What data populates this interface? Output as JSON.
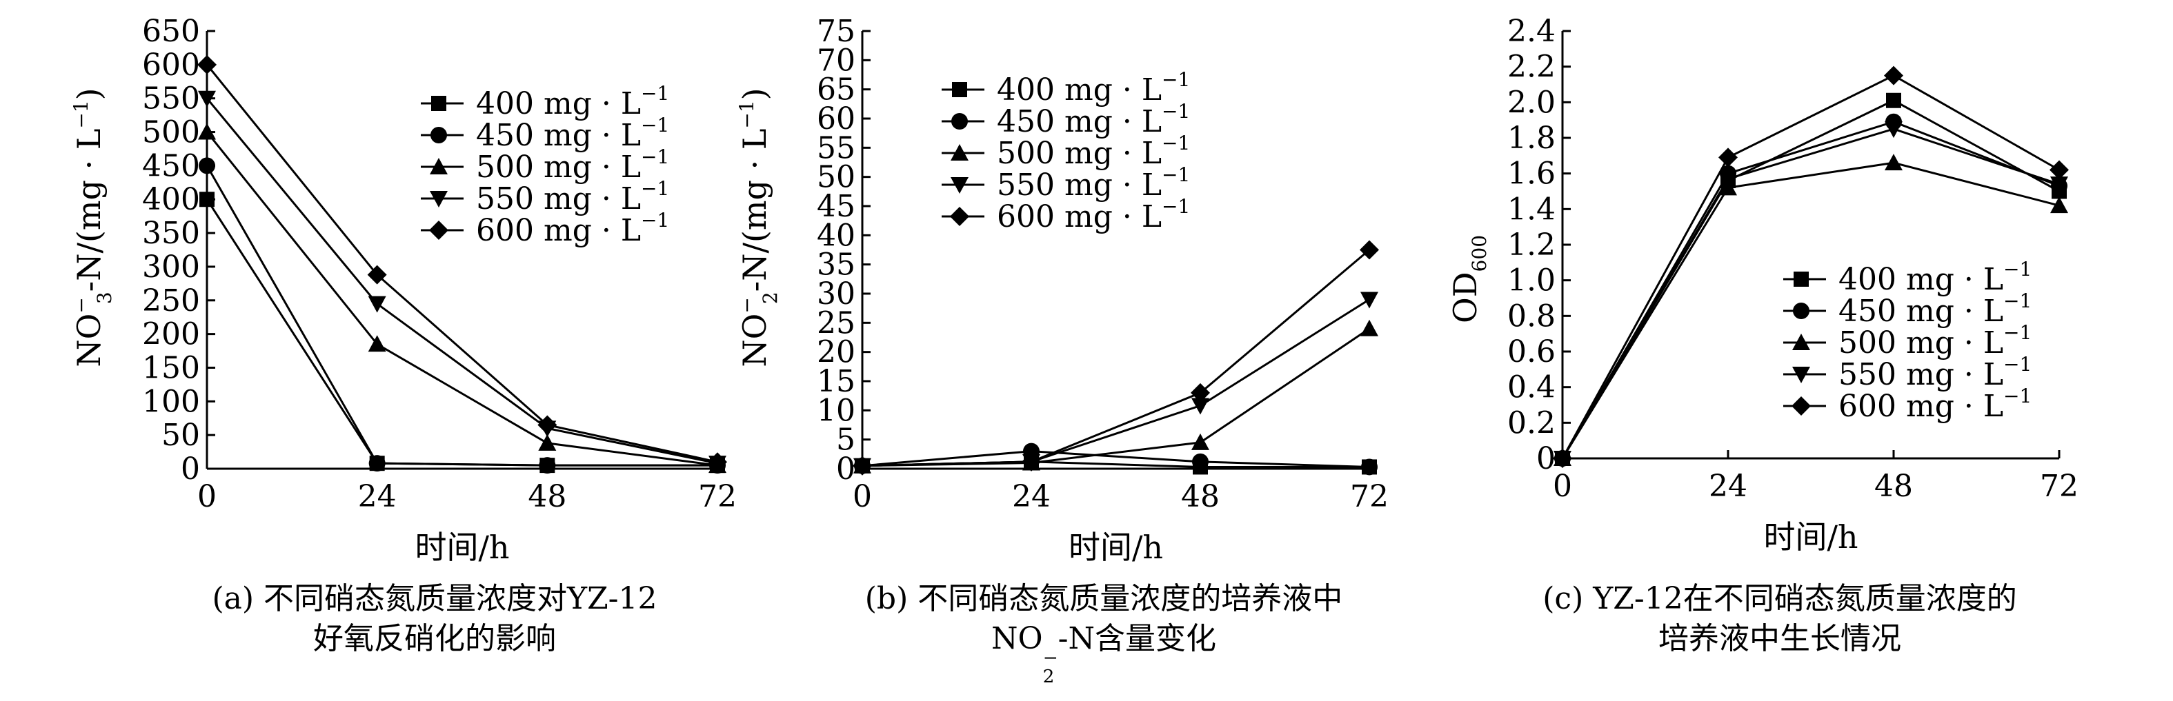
{
  "chart_data": [
    {
      "type": "line",
      "panel_label": "(a)",
      "caption": [
        "不同硝态氮质量浓度对YZ-12",
        "好氧反硝化的影响"
      ],
      "xlabel": "时间/h",
      "ylabel_parts": {
        "base": "NO",
        "sup": "−",
        "sub": "3",
        "rest": "-N/(mg · L",
        "rest_sup": "−1",
        "close": ")"
      },
      "x": [
        0,
        24,
        48,
        72
      ],
      "xlim": [
        0,
        72
      ],
      "ylim": [
        0,
        650
      ],
      "yticks": [
        0,
        50,
        100,
        150,
        200,
        250,
        300,
        350,
        400,
        450,
        500,
        550,
        600,
        650
      ],
      "legend": "top-right",
      "series": [
        {
          "name": "400 mg · L",
          "name_sup": "−1",
          "marker": "square",
          "values": [
            400,
            8,
            5,
            5
          ]
        },
        {
          "name": "450 mg · L",
          "name_sup": "−1",
          "marker": "circle",
          "values": [
            450,
            8,
            5,
            5
          ]
        },
        {
          "name": "500 mg · L",
          "name_sup": "−1",
          "marker": "triangle",
          "values": [
            500,
            185,
            38,
            5
          ]
        },
        {
          "name": "550 mg · L",
          "name_sup": "−1",
          "marker": "tri-down",
          "values": [
            550,
            245,
            60,
            8
          ]
        },
        {
          "name": "600 mg · L",
          "name_sup": "−1",
          "marker": "diamond",
          "values": [
            600,
            288,
            65,
            10
          ]
        }
      ]
    },
    {
      "type": "line",
      "panel_label": "(b)",
      "caption": [
        "不同硝态氮质量浓度的培养液中",
        "NO",
        "−",
        "2",
        "-N含量变化"
      ],
      "xlabel": "时间/h",
      "ylabel_parts": {
        "base": "NO",
        "sup": "−",
        "sub": "2",
        "rest": "-N/(mg · L",
        "rest_sup": "−1",
        "close": ")"
      },
      "x": [
        0,
        24,
        48,
        72
      ],
      "xlim": [
        0,
        72
      ],
      "ylim": [
        0,
        75
      ],
      "yticks": [
        0,
        5,
        10,
        15,
        20,
        25,
        30,
        35,
        40,
        45,
        50,
        55,
        60,
        65,
        70,
        75
      ],
      "legend": "top-left",
      "series": [
        {
          "name": "400 mg · L",
          "name_sup": "−1",
          "marker": "square",
          "values": [
            0.5,
            1.2,
            0.3,
            0.3
          ]
        },
        {
          "name": "450 mg · L",
          "name_sup": "−1",
          "marker": "circle",
          "values": [
            0.5,
            3.0,
            1.2,
            0.3
          ]
        },
        {
          "name": "500 mg · L",
          "name_sup": "−1",
          "marker": "triangle",
          "values": [
            0.5,
            1.0,
            4.5,
            24.0
          ]
        },
        {
          "name": "550 mg · L",
          "name_sup": "−1",
          "marker": "tri-down",
          "values": [
            0.5,
            1.2,
            10.8,
            29.0
          ]
        },
        {
          "name": "600 mg · L",
          "name_sup": "−1",
          "marker": "diamond",
          "values": [
            0.5,
            1.2,
            13.0,
            37.5
          ]
        }
      ]
    },
    {
      "type": "line",
      "panel_label": "(c)",
      "caption": [
        "YZ-12在不同硝态氮质量浓度的",
        "培养液中生长情况"
      ],
      "xlabel": "时间/h",
      "ylabel_parts": {
        "base": "OD",
        "sub": "600"
      },
      "x": [
        0,
        24,
        48,
        72
      ],
      "xlim": [
        0,
        72
      ],
      "ylim": [
        0,
        2.4
      ],
      "yticks": [
        "0",
        "0.2",
        "0.4",
        "0.6",
        "0.8",
        "1.0",
        "1.2",
        "1.4",
        "1.6",
        "1.8",
        "2.0",
        "2.2",
        "2.4"
      ],
      "legend": "bottom-right",
      "series": [
        {
          "name": "400 mg · L",
          "name_sup": "−1",
          "marker": "square",
          "values": [
            0,
            1.56,
            2.01,
            1.5
          ]
        },
        {
          "name": "450 mg · L",
          "name_sup": "−1",
          "marker": "circle",
          "values": [
            0,
            1.6,
            1.89,
            1.53
          ]
        },
        {
          "name": "500 mg · L",
          "name_sup": "−1",
          "marker": "triangle",
          "values": [
            0,
            1.52,
            1.66,
            1.42
          ]
        },
        {
          "name": "550 mg · L",
          "name_sup": "−1",
          "marker": "tri-down",
          "values": [
            0,
            1.57,
            1.85,
            1.54
          ]
        },
        {
          "name": "600 mg · L",
          "name_sup": "−1",
          "marker": "diamond",
          "values": [
            0,
            1.69,
            2.15,
            1.62
          ]
        }
      ]
    }
  ]
}
